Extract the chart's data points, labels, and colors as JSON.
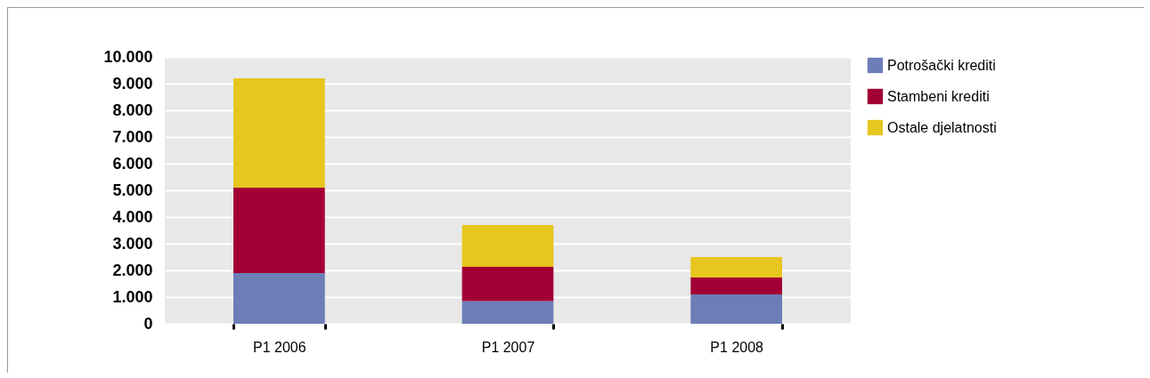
{
  "chart_data": {
    "type": "bar",
    "stacked": true,
    "categories": [
      "P1 2006",
      "P1 2007",
      "P1 2008"
    ],
    "series": [
      {
        "name": "Potrošački krediti",
        "color": "#6c7db7",
        "values": [
          1900,
          850,
          1100
        ]
      },
      {
        "name": "Stambeni krediti",
        "color": "#a20034",
        "values": [
          3200,
          1280,
          630
        ]
      },
      {
        "name": "Ostale djelatnosti",
        "color": "#e6c61f",
        "values": [
          4100,
          1570,
          770
        ]
      }
    ],
    "ylim": [
      0,
      10000
    ],
    "yticks": [
      {
        "value": 0,
        "label": "0"
      },
      {
        "value": 1000,
        "label": "1.000"
      },
      {
        "value": 2000,
        "label": "2.000"
      },
      {
        "value": 3000,
        "label": "3.000"
      },
      {
        "value": 4000,
        "label": "4.000"
      },
      {
        "value": 5000,
        "label": "5.000"
      },
      {
        "value": 6000,
        "label": "6.000"
      },
      {
        "value": 7000,
        "label": "7.000"
      },
      {
        "value": 8000,
        "label": "8.000"
      },
      {
        "value": 9000,
        "label": "9.000"
      },
      {
        "value": 10000,
        "label": "10.000"
      }
    ],
    "grid": "y",
    "legend": "right"
  }
}
